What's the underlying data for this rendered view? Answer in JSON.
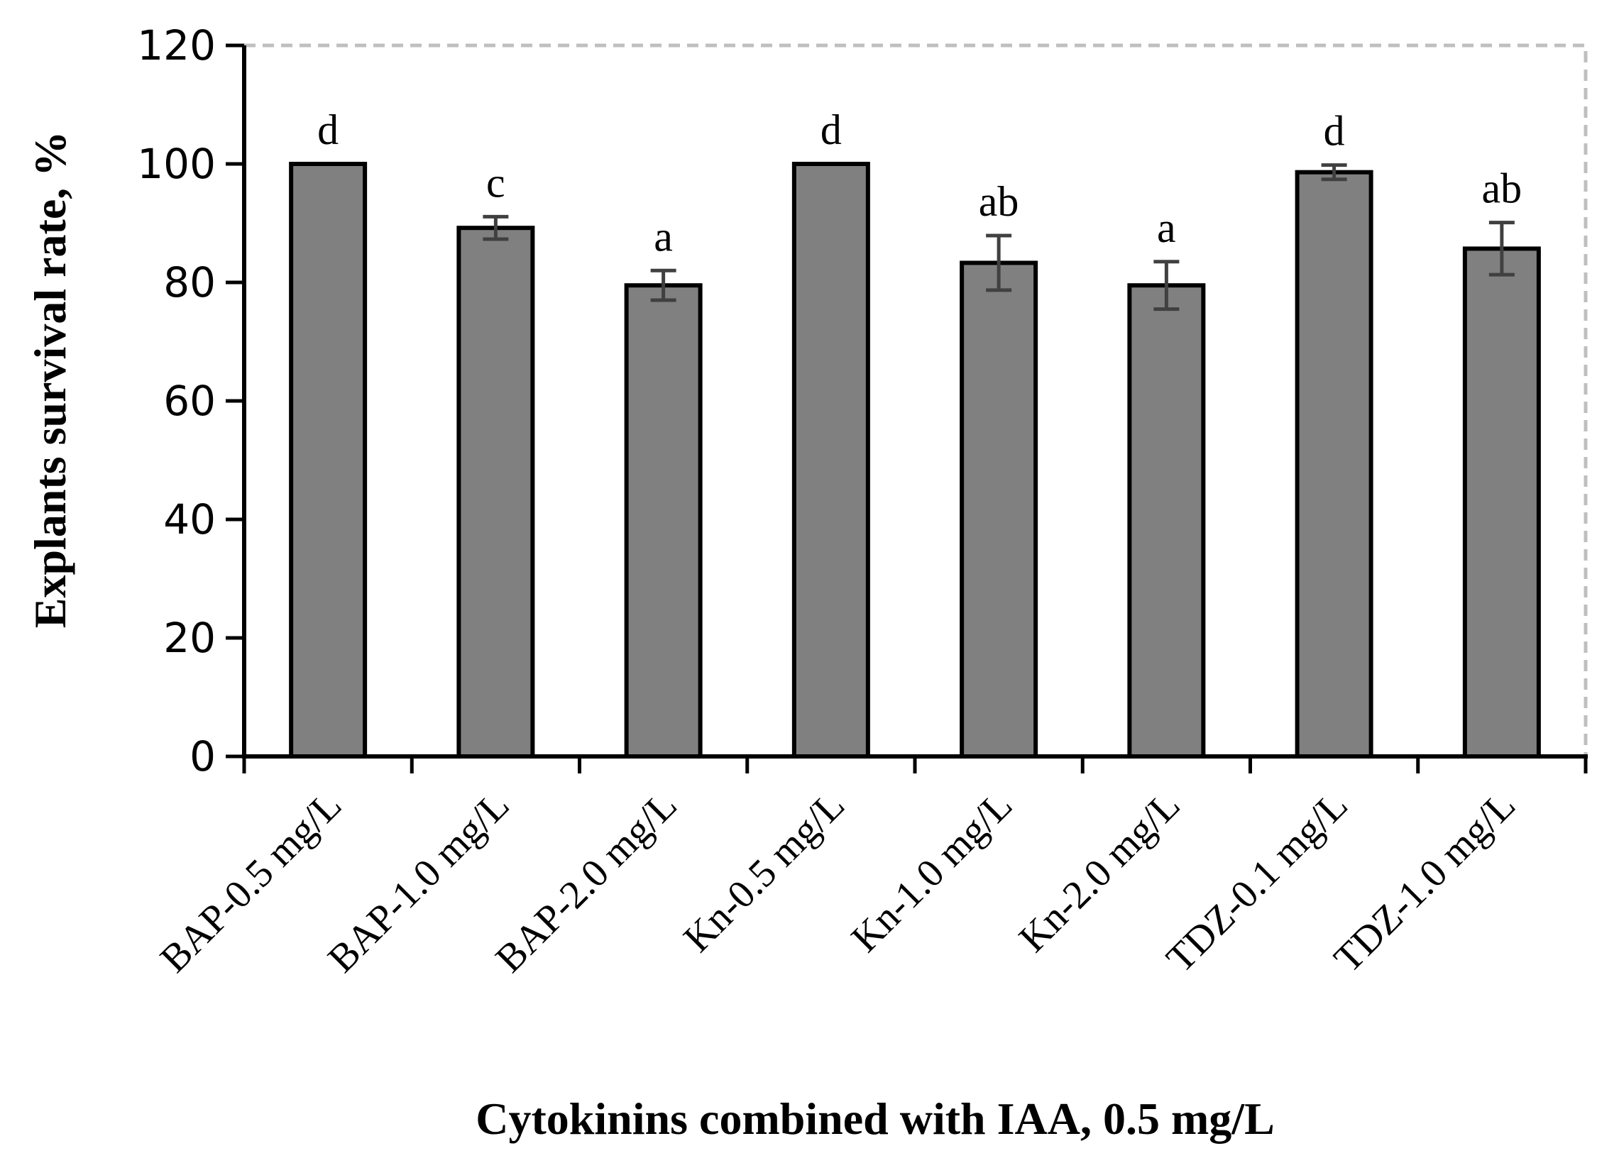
{
  "chart_data": {
    "type": "bar",
    "title": "",
    "xlabel": "Cytokinins combined with IAA, 0.5 mg/L",
    "ylabel": "Explants survival rate, %",
    "ylim": [
      0,
      120
    ],
    "yticks": [
      0,
      20,
      40,
      60,
      80,
      100,
      120
    ],
    "categories": [
      "BAP-0.5 mg/L",
      "BAP-1.0 mg/L",
      "BAP-2.0 mg/L",
      "Kn-0.5 mg/L",
      "Kn-1.0 mg/L",
      "Kn-2.0 mg/L",
      "TDZ-0.1 mg/L",
      "TDZ-1.0 mg/L"
    ],
    "values": [
      100,
      89.2,
      79.5,
      100,
      83.3,
      79.5,
      98.6,
      85.7
    ],
    "errors": [
      0,
      1.9,
      2.5,
      0,
      4.6,
      4.0,
      1.2,
      4.4
    ],
    "letters": [
      "d",
      "c",
      "a",
      "d",
      "ab",
      "a",
      "d",
      "ab"
    ],
    "grid": false,
    "colors": {
      "bar_fill": "#808080",
      "bar_edge": "#000000",
      "error_bar": "#404040",
      "frame": "#bfbfbf"
    }
  }
}
